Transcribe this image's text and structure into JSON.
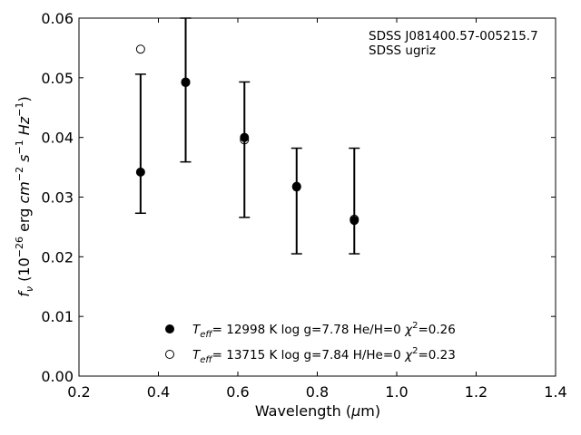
{
  "chart_data": {
    "type": "scatter",
    "annotation": [
      "SDSS J081400.57-005215.7",
      "SDSS ugriz"
    ],
    "xlabel": {
      "main": "Wavelength (",
      "mu": "μ",
      "unit": "m)"
    },
    "ylabel": {
      "f": "f",
      "nu": "ν",
      "open": " (10",
      "exp1": "−26",
      "mid": " erg ",
      "cm": "cm",
      "exp2": "−2",
      "s": " s",
      "exp3": "−1",
      "hz": " Hz",
      "exp4": "−1",
      "close": ")"
    },
    "xlim": [
      0.2,
      1.4
    ],
    "ylim": [
      0.0,
      0.06
    ],
    "x_ticks": [
      0.2,
      0.4,
      0.6,
      0.8,
      1.0,
      1.2,
      1.4
    ],
    "x_tick_labels": [
      "0.2",
      "0.4",
      "0.6",
      "0.8",
      "1.0",
      "1.2",
      "1.4"
    ],
    "y_ticks": [
      0.0,
      0.01,
      0.02,
      0.03,
      0.04,
      0.05,
      0.06
    ],
    "y_tick_labels": [
      "0.00",
      "0.01",
      "0.02",
      "0.03",
      "0.04",
      "0.05",
      "0.06"
    ],
    "observed": {
      "x": [
        0.3551,
        0.4686,
        0.6166,
        0.748,
        0.8932
      ],
      "y": [
        0.0342,
        0.0493,
        0.0399,
        0.0317,
        0.0259
      ],
      "y_lower": [
        0.0273,
        0.0359,
        0.0266,
        0.0205,
        0.0205
      ],
      "y_upper": [
        0.0506,
        0.0606,
        0.0493,
        0.0382,
        0.0382
      ]
    },
    "series": [
      {
        "marker": "filled-circle",
        "label": {
          "t": "T",
          "sub": "eff",
          "rest": "= 12998 K  log g=7.78  He/H=0  ",
          "chi": "χ",
          "sup": "2",
          "end": "=0.26"
        },
        "x": [
          0.3551,
          0.4686,
          0.6166,
          0.748,
          0.8932
        ],
        "y": [
          0.0342,
          0.0493,
          0.04,
          0.0318,
          0.0261
        ]
      },
      {
        "marker": "open-circle",
        "label": {
          "t": "T",
          "sub": "eff",
          "rest": "= 13715 K  log g=7.84  H/He=0  ",
          "chi": "χ",
          "sup": "2",
          "end": "=0.23"
        },
        "x": [
          0.3551,
          0.4686,
          0.6166,
          0.748,
          0.8932
        ],
        "y": [
          0.0548,
          0.0492,
          0.0396,
          0.0317,
          0.0263
        ]
      }
    ],
    "grid": false,
    "legend_position": "lower-center",
    "colors": {
      "marker": "#000000",
      "axes": "#000000",
      "background": "#ffffff"
    }
  }
}
